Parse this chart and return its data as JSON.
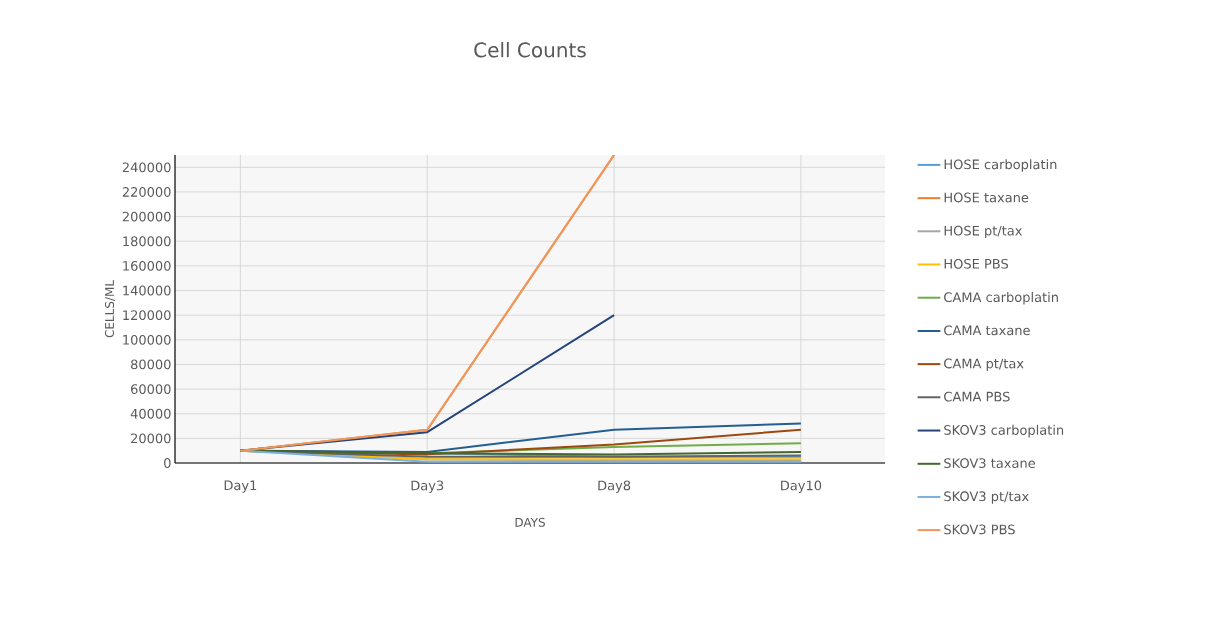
{
  "chart_data": {
    "type": "line",
    "title": "Cell Counts",
    "xlabel": "DAYS",
    "ylabel": "CELLS/ML",
    "categories": [
      "Day1",
      "Day3",
      "Day8",
      "Day10"
    ],
    "ylim": [
      0,
      250000
    ],
    "yticks": [
      0,
      20000,
      40000,
      60000,
      80000,
      100000,
      120000,
      140000,
      160000,
      180000,
      200000,
      220000,
      240000
    ],
    "grid": true,
    "legend": "right",
    "line_style": "solid",
    "series": [
      {
        "name": "HOSE carboplatin",
        "color": "#5b9bd5",
        "values": [
          10000,
          8000,
          5000,
          5000
        ]
      },
      {
        "name": "HOSE taxane",
        "color": "#ed7d31",
        "values": [
          10000,
          27000,
          250000,
          null
        ]
      },
      {
        "name": "HOSE pt/tax",
        "color": "#a5a5a5",
        "values": [
          10000,
          3000,
          2000,
          2000
        ]
      },
      {
        "name": "HOSE PBS",
        "color": "#ffc000",
        "values": [
          10000,
          3000,
          3000,
          3000
        ]
      },
      {
        "name": "CAMA carboplatin",
        "color": "#70ad47",
        "values": [
          10000,
          8000,
          13000,
          16000
        ]
      },
      {
        "name": "CAMA taxane",
        "color": "#255e91",
        "values": [
          10000,
          9000,
          27000,
          32000
        ]
      },
      {
        "name": "CAMA pt/tax",
        "color": "#9e480e",
        "values": [
          10000,
          7000,
          15000,
          27000
        ]
      },
      {
        "name": "CAMA PBS",
        "color": "#636363",
        "values": [
          10000,
          5000,
          5000,
          6000
        ]
      },
      {
        "name": "SKOV3 carboplatin",
        "color": "#264478",
        "values": [
          10000,
          25000,
          120000,
          null
        ]
      },
      {
        "name": "SKOV3 taxane",
        "color": "#43682b",
        "values": [
          10000,
          8000,
          7000,
          9000
        ]
      },
      {
        "name": "SKOV3 pt/tax",
        "color": "#7cafdd",
        "values": [
          10000,
          1000,
          1000,
          1000
        ]
      },
      {
        "name": "SKOV3 PBS",
        "color": "#f1975a",
        "values": [
          10000,
          27000,
          250000,
          null
        ]
      }
    ]
  }
}
